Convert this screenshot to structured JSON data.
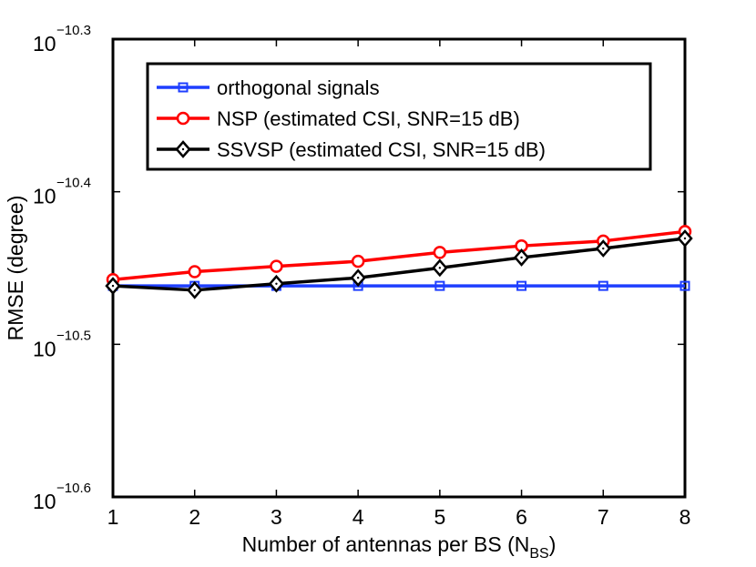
{
  "chart_data": {
    "type": "line",
    "title": "",
    "xlabel": "Number of antennas per BS (N",
    "xlabel_sub": "BS",
    "xlabel_end": ")",
    "ylabel": "RMSE (degree)",
    "yscale": "log",
    "x": [
      1,
      2,
      3,
      4,
      5,
      6,
      7,
      8
    ],
    "xlim": [
      1,
      8
    ],
    "ylim_exponent": [
      -10.6,
      -10.3
    ],
    "x_ticks": [
      "1",
      "2",
      "3",
      "4",
      "5",
      "6",
      "7",
      "8"
    ],
    "y_ticks": [
      {
        "base": "10",
        "exp": "−10.3",
        "value": -10.3
      },
      {
        "base": "10",
        "exp": "−10.4",
        "value": -10.4
      },
      {
        "base": "10",
        "exp": "−10.5",
        "value": -10.5
      },
      {
        "base": "10",
        "exp": "−10.6",
        "value": -10.6
      }
    ],
    "legend_position": "top-center",
    "grid": false,
    "series": [
      {
        "name": "orthogonal signals",
        "color": "#1f3fff",
        "marker": "square",
        "values_log10": [
          -10.4617,
          -10.4617,
          -10.4617,
          -10.4617,
          -10.4617,
          -10.4617,
          -10.4617,
          -10.4617
        ]
      },
      {
        "name": "NSP (estimated CSI, SNR=15 dB)",
        "color": "#ff0000",
        "marker": "circle",
        "values_log10": [
          -10.4576,
          -10.4524,
          -10.4489,
          -10.4456,
          -10.4398,
          -10.4355,
          -10.4323,
          -10.4261
        ]
      },
      {
        "name": "SSVSP (estimated CSI, SNR=15 dB)",
        "color": "#000000",
        "marker": "diamond",
        "values_log10": [
          -10.4617,
          -10.4645,
          -10.4603,
          -10.4564,
          -10.4499,
          -10.4431,
          -10.4372,
          -10.4306
        ]
      }
    ]
  }
}
